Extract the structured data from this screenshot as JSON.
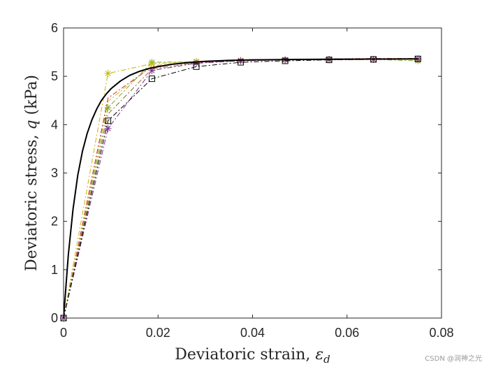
{
  "chart_data": {
    "type": "line",
    "title": "",
    "xlabel": "Deviatoric strain, ",
    "xlabel_symbol": "ε",
    "xlabel_subscript": "d",
    "ylabel": "Deviatoric stress, ",
    "ylabel_symbol": "q",
    "ylabel_unit": " (kPa)",
    "xlim": [
      0,
      0.08
    ],
    "ylim": [
      0,
      6
    ],
    "xticks": [
      0,
      0.02,
      0.04,
      0.06,
      0.08
    ],
    "xtick_labels": [
      "0",
      "0.02",
      "0.04",
      "0.06",
      "0.08"
    ],
    "yticks": [
      0,
      1,
      2,
      3,
      4,
      5,
      6
    ],
    "ytick_labels": [
      "0",
      "1",
      "2",
      "3",
      "4",
      "5",
      "6"
    ],
    "grid": false,
    "legend": "none",
    "series": [
      {
        "name": "reference",
        "color": "#000000",
        "style": "solid",
        "marker": "none",
        "smooth": true,
        "x": [
          0,
          0.001,
          0.002,
          0.003,
          0.004,
          0.005,
          0.006,
          0.007,
          0.008,
          0.009,
          0.01,
          0.012,
          0.014,
          0.016,
          0.018,
          0.02,
          0.023,
          0.026,
          0.03,
          0.035,
          0.04,
          0.05,
          0.06,
          0.075
        ],
        "y": [
          0,
          1.3,
          2.25,
          2.95,
          3.45,
          3.82,
          4.1,
          4.32,
          4.5,
          4.63,
          4.74,
          4.9,
          5.02,
          5.1,
          5.16,
          5.2,
          5.25,
          5.28,
          5.31,
          5.33,
          5.34,
          5.35,
          5.355,
          5.36
        ]
      },
      {
        "name": "square-dashdot",
        "color": "#000000",
        "style": "dashdot",
        "marker": "square",
        "x": [
          0,
          0.0094,
          0.0187,
          0.0281,
          0.0375,
          0.0469,
          0.0562,
          0.0656,
          0.075
        ],
        "y": [
          0,
          4.08,
          4.95,
          5.2,
          5.29,
          5.32,
          5.34,
          5.35,
          5.36
        ]
      },
      {
        "name": "purple-star",
        "color": "#7e2f8e",
        "style": "dashdot",
        "marker": "star",
        "x": [
          0,
          0.0094,
          0.0187,
          0.0281,
          0.0375,
          0.0469,
          0.0562,
          0.0656,
          0.075
        ],
        "y": [
          0,
          3.92,
          5.12,
          5.27,
          5.32,
          5.34,
          5.35,
          5.35,
          5.36
        ]
      },
      {
        "name": "olive-star",
        "color": "#c8b400",
        "style": "dashdot",
        "marker": "star",
        "x": [
          0,
          0.0094,
          0.0187,
          0.0281,
          0.0375,
          0.0469,
          0.0562,
          0.0656,
          0.075
        ],
        "y": [
          0,
          5.06,
          5.26,
          5.31,
          5.33,
          5.34,
          5.35,
          5.35,
          5.35
        ]
      },
      {
        "name": "green-star",
        "color": "#77ac30",
        "style": "dashdot",
        "marker": "star",
        "x": [
          0,
          0.0094,
          0.0187,
          0.0281,
          0.0375,
          0.0469,
          0.0562,
          0.0656,
          0.075
        ],
        "y": [
          0,
          4.35,
          5.29,
          5.3,
          5.33,
          5.34,
          5.34,
          5.35,
          5.32
        ]
      },
      {
        "name": "red-dashdot",
        "color": "#d62728",
        "style": "dashdot",
        "marker": "none",
        "x": [
          0,
          0.0094,
          0.0187,
          0.0281,
          0.0375,
          0.0469,
          0.0562,
          0.0656,
          0.075
        ],
        "y": [
          0,
          4.55,
          5.2,
          5.29,
          5.33,
          5.35,
          5.36,
          5.37,
          5.37
        ]
      },
      {
        "name": "orange-dashdot",
        "color": "#edb120",
        "style": "dashdot",
        "marker": "none",
        "x": [
          0,
          0.0094,
          0.0187,
          0.0281,
          0.0375,
          0.0469,
          0.0562,
          0.0656,
          0.075
        ],
        "y": [
          0,
          4.48,
          5.22,
          5.3,
          5.33,
          5.34,
          5.35,
          5.36,
          5.36
        ]
      },
      {
        "name": "brown-dashdot",
        "color": "#8c6d1f",
        "style": "dashdot",
        "marker": "none",
        "x": [
          0,
          0.0094,
          0.0187,
          0.0281,
          0.0375,
          0.0469,
          0.0562,
          0.0656,
          0.075
        ],
        "y": [
          0,
          4.22,
          5.15,
          5.28,
          5.32,
          5.34,
          5.35,
          5.36,
          5.36
        ]
      }
    ],
    "watermark": "CSDN @润神之光"
  }
}
